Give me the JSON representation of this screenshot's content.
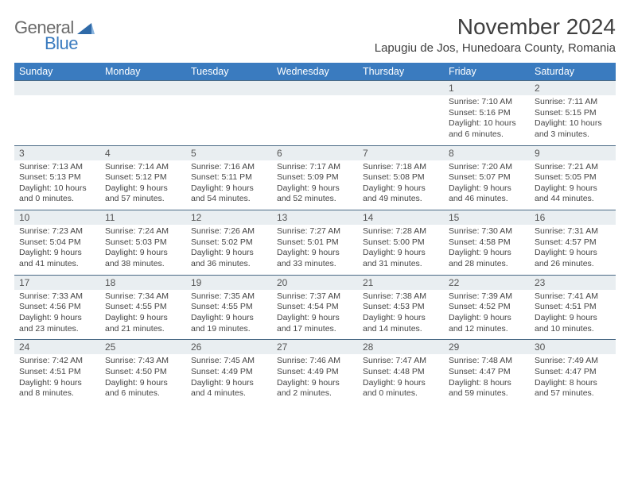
{
  "logo": {
    "text_general": "General",
    "text_blue": "Blue"
  },
  "title": "November 2024",
  "location": "Lapugiu de Jos, Hunedoara County, Romania",
  "colors": {
    "header_bg": "#3a7bbf",
    "header_fg": "#ffffff",
    "daynum_bg": "#e9eef1",
    "daynum_border": "#4a6a85",
    "text": "#454545",
    "logo_gray": "#6a6a6a",
    "logo_blue": "#3a7bbf",
    "background": "#ffffff"
  },
  "typography": {
    "title_fontsize": 28,
    "location_fontsize": 15,
    "weekday_fontsize": 12.5,
    "daynum_fontsize": 12,
    "cell_fontsize": 10.5
  },
  "calendar": {
    "type": "table",
    "columns": [
      "Sunday",
      "Monday",
      "Tuesday",
      "Wednesday",
      "Thursday",
      "Friday",
      "Saturday"
    ],
    "weeks": [
      [
        {
          "day": "",
          "lines": []
        },
        {
          "day": "",
          "lines": []
        },
        {
          "day": "",
          "lines": []
        },
        {
          "day": "",
          "lines": []
        },
        {
          "day": "",
          "lines": []
        },
        {
          "day": "1",
          "lines": [
            "Sunrise: 7:10 AM",
            "Sunset: 5:16 PM",
            "Daylight: 10 hours and 6 minutes."
          ]
        },
        {
          "day": "2",
          "lines": [
            "Sunrise: 7:11 AM",
            "Sunset: 5:15 PM",
            "Daylight: 10 hours and 3 minutes."
          ]
        }
      ],
      [
        {
          "day": "3",
          "lines": [
            "Sunrise: 7:13 AM",
            "Sunset: 5:13 PM",
            "Daylight: 10 hours and 0 minutes."
          ]
        },
        {
          "day": "4",
          "lines": [
            "Sunrise: 7:14 AM",
            "Sunset: 5:12 PM",
            "Daylight: 9 hours and 57 minutes."
          ]
        },
        {
          "day": "5",
          "lines": [
            "Sunrise: 7:16 AM",
            "Sunset: 5:11 PM",
            "Daylight: 9 hours and 54 minutes."
          ]
        },
        {
          "day": "6",
          "lines": [
            "Sunrise: 7:17 AM",
            "Sunset: 5:09 PM",
            "Daylight: 9 hours and 52 minutes."
          ]
        },
        {
          "day": "7",
          "lines": [
            "Sunrise: 7:18 AM",
            "Sunset: 5:08 PM",
            "Daylight: 9 hours and 49 minutes."
          ]
        },
        {
          "day": "8",
          "lines": [
            "Sunrise: 7:20 AM",
            "Sunset: 5:07 PM",
            "Daylight: 9 hours and 46 minutes."
          ]
        },
        {
          "day": "9",
          "lines": [
            "Sunrise: 7:21 AM",
            "Sunset: 5:05 PM",
            "Daylight: 9 hours and 44 minutes."
          ]
        }
      ],
      [
        {
          "day": "10",
          "lines": [
            "Sunrise: 7:23 AM",
            "Sunset: 5:04 PM",
            "Daylight: 9 hours and 41 minutes."
          ]
        },
        {
          "day": "11",
          "lines": [
            "Sunrise: 7:24 AM",
            "Sunset: 5:03 PM",
            "Daylight: 9 hours and 38 minutes."
          ]
        },
        {
          "day": "12",
          "lines": [
            "Sunrise: 7:26 AM",
            "Sunset: 5:02 PM",
            "Daylight: 9 hours and 36 minutes."
          ]
        },
        {
          "day": "13",
          "lines": [
            "Sunrise: 7:27 AM",
            "Sunset: 5:01 PM",
            "Daylight: 9 hours and 33 minutes."
          ]
        },
        {
          "day": "14",
          "lines": [
            "Sunrise: 7:28 AM",
            "Sunset: 5:00 PM",
            "Daylight: 9 hours and 31 minutes."
          ]
        },
        {
          "day": "15",
          "lines": [
            "Sunrise: 7:30 AM",
            "Sunset: 4:58 PM",
            "Daylight: 9 hours and 28 minutes."
          ]
        },
        {
          "day": "16",
          "lines": [
            "Sunrise: 7:31 AM",
            "Sunset: 4:57 PM",
            "Daylight: 9 hours and 26 minutes."
          ]
        }
      ],
      [
        {
          "day": "17",
          "lines": [
            "Sunrise: 7:33 AM",
            "Sunset: 4:56 PM",
            "Daylight: 9 hours and 23 minutes."
          ]
        },
        {
          "day": "18",
          "lines": [
            "Sunrise: 7:34 AM",
            "Sunset: 4:55 PM",
            "Daylight: 9 hours and 21 minutes."
          ]
        },
        {
          "day": "19",
          "lines": [
            "Sunrise: 7:35 AM",
            "Sunset: 4:55 PM",
            "Daylight: 9 hours and 19 minutes."
          ]
        },
        {
          "day": "20",
          "lines": [
            "Sunrise: 7:37 AM",
            "Sunset: 4:54 PM",
            "Daylight: 9 hours and 17 minutes."
          ]
        },
        {
          "day": "21",
          "lines": [
            "Sunrise: 7:38 AM",
            "Sunset: 4:53 PM",
            "Daylight: 9 hours and 14 minutes."
          ]
        },
        {
          "day": "22",
          "lines": [
            "Sunrise: 7:39 AM",
            "Sunset: 4:52 PM",
            "Daylight: 9 hours and 12 minutes."
          ]
        },
        {
          "day": "23",
          "lines": [
            "Sunrise: 7:41 AM",
            "Sunset: 4:51 PM",
            "Daylight: 9 hours and 10 minutes."
          ]
        }
      ],
      [
        {
          "day": "24",
          "lines": [
            "Sunrise: 7:42 AM",
            "Sunset: 4:51 PM",
            "Daylight: 9 hours and 8 minutes."
          ]
        },
        {
          "day": "25",
          "lines": [
            "Sunrise: 7:43 AM",
            "Sunset: 4:50 PM",
            "Daylight: 9 hours and 6 minutes."
          ]
        },
        {
          "day": "26",
          "lines": [
            "Sunrise: 7:45 AM",
            "Sunset: 4:49 PM",
            "Daylight: 9 hours and 4 minutes."
          ]
        },
        {
          "day": "27",
          "lines": [
            "Sunrise: 7:46 AM",
            "Sunset: 4:49 PM",
            "Daylight: 9 hours and 2 minutes."
          ]
        },
        {
          "day": "28",
          "lines": [
            "Sunrise: 7:47 AM",
            "Sunset: 4:48 PM",
            "Daylight: 9 hours and 0 minutes."
          ]
        },
        {
          "day": "29",
          "lines": [
            "Sunrise: 7:48 AM",
            "Sunset: 4:47 PM",
            "Daylight: 8 hours and 59 minutes."
          ]
        },
        {
          "day": "30",
          "lines": [
            "Sunrise: 7:49 AM",
            "Sunset: 4:47 PM",
            "Daylight: 8 hours and 57 minutes."
          ]
        }
      ]
    ]
  }
}
